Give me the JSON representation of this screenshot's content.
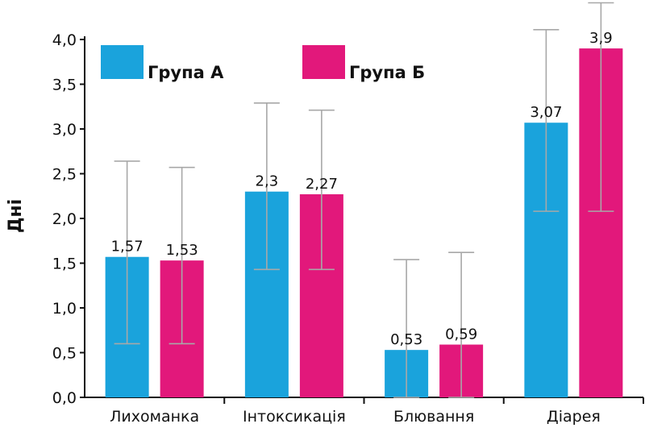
{
  "chart_data": {
    "type": "bar",
    "categories": [
      "Лихоманка",
      "Інтоксикація",
      "Блювання",
      "Діарея"
    ],
    "series": [
      {
        "name": "Група А",
        "color": "#1aa3dc",
        "values": [
          1.57,
          2.3,
          0.53,
          3.07
        ],
        "value_labels": [
          "1,57",
          "2,3",
          "0,53",
          "3,07"
        ],
        "error_low": [
          0.6,
          1.43,
          0.0,
          2.08
        ],
        "error_high": [
          2.64,
          3.29,
          1.54,
          4.11
        ]
      },
      {
        "name": "Група Б",
        "color": "#e2187b",
        "values": [
          1.53,
          2.27,
          0.59,
          3.9
        ],
        "value_labels": [
          "1,53",
          "2,27",
          "0,59",
          "3,9"
        ],
        "error_low": [
          0.6,
          1.43,
          0.0,
          2.08
        ],
        "error_high": [
          2.57,
          3.21,
          1.62,
          4.41
        ]
      }
    ],
    "ylabel": "Дні",
    "ylim": [
      0,
      4.0
    ],
    "yticks": [
      "0,0",
      "0,5",
      "1,0",
      "1,5",
      "2,0",
      "2,5",
      "3,0",
      "3,5",
      "4,0"
    ],
    "ytick_values": [
      0,
      0.5,
      1.0,
      1.5,
      2.0,
      2.5,
      3.0,
      3.5,
      4.0
    ],
    "error_bar_color": "#a8a8a8",
    "grid": false,
    "legend_position": "top-left"
  }
}
